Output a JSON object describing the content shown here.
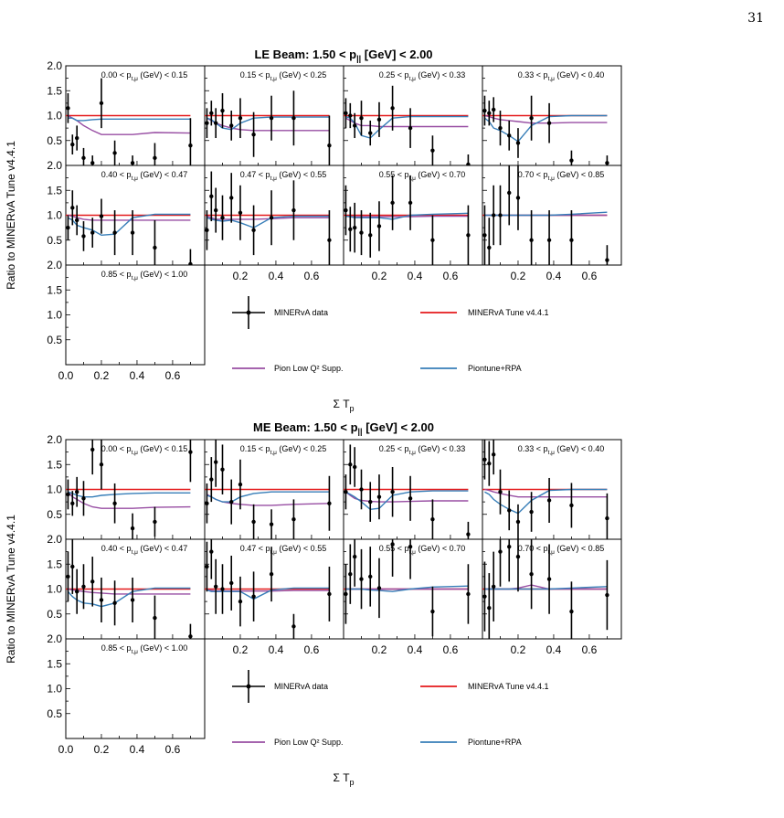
{
  "page_number": "31",
  "colors": {
    "data": "#000000",
    "tune": "#e41a1c",
    "low_q2": "#984ea3",
    "piontune": "#377eb8"
  },
  "legend": {
    "data": "MINERvA data",
    "tune": "MINERvA Tune v4.4.1",
    "low_q2": "Pion Low Q² Supp.",
    "piontune": "Piontune+RPA"
  },
  "chart_data": [
    {
      "type": "scatter",
      "title": "LE Beam: 1.50 < p|| [GeV] < 2.00",
      "ylabel": "Ratio to MINERvA Tune v4.4.1",
      "xlabel": "Σ Tₚ",
      "xlim": [
        0,
        0.78
      ],
      "ylim": [
        0,
        2
      ],
      "x_ticks": [
        "0.0",
        "0.2",
        "0.4",
        "0.6"
      ],
      "x_ticks_inner": [
        "0.2",
        "0.4",
        "0.6"
      ],
      "y_ticks": [
        "0.5",
        "1.0",
        "1.5",
        "2.0"
      ],
      "grid": false,
      "x_bins": [
        0.0125,
        0.0375,
        0.0625,
        0.1,
        0.15,
        0.2,
        0.275,
        0.375,
        0.5,
        0.7
      ],
      "panels": [
        {
          "label": "0.00 < p t,μ (GeV) < 0.15",
          "data": [
            1.15,
            0.42,
            0.55,
            0.15,
            0.05,
            1.25,
            0.25,
            0.05,
            0.15,
            0.4
          ],
          "err": [
            0.3,
            0.2,
            0.25,
            0.2,
            0.15,
            0.5,
            0.25,
            0.15,
            0.3,
            0.55
          ],
          "low_q2": [
            1.0,
            0.95,
            0.9,
            0.8,
            0.7,
            0.62,
            0.62,
            0.62,
            0.66,
            0.65
          ],
          "piontune": [
            0.95,
            0.95,
            0.9,
            0.9,
            0.92,
            0.93,
            0.93,
            0.93,
            0.93,
            0.93
          ]
        },
        {
          "label": "0.15 < p t,μ (GeV) < 0.25",
          "data": [
            0.85,
            1.05,
            0.85,
            1.1,
            0.8,
            0.95,
            0.62,
            0.95,
            0.95,
            0.4
          ],
          "err": [
            0.3,
            0.25,
            0.3,
            0.35,
            0.3,
            0.4,
            0.45,
            0.45,
            0.55,
            0.6
          ],
          "low_q2": [
            0.95,
            0.9,
            0.85,
            0.8,
            0.75,
            0.72,
            0.7,
            0.7,
            0.7,
            0.7
          ],
          "piontune": [
            0.95,
            0.92,
            0.85,
            0.75,
            0.72,
            0.85,
            0.95,
            0.97,
            0.97,
            0.97
          ]
        },
        {
          "label": "0.25 < p t,μ (GeV) < 0.33",
          "data": [
            1.05,
            1.0,
            0.8,
            0.95,
            0.65,
            0.92,
            1.15,
            0.75,
            0.3,
            0.02
          ],
          "err": [
            0.3,
            0.25,
            0.25,
            0.35,
            0.25,
            0.35,
            0.45,
            0.4,
            0.3,
            0.2
          ],
          "low_q2": [
            0.95,
            0.9,
            0.85,
            0.8,
            0.8,
            0.78,
            0.78,
            0.78,
            0.78,
            0.78
          ],
          "piontune": [
            0.98,
            0.95,
            0.85,
            0.6,
            0.55,
            0.72,
            0.95,
            0.98,
            0.98,
            0.98
          ]
        },
        {
          "label": "0.33 < p t,μ (GeV) < 0.40",
          "data": [
            1.1,
            1.05,
            1.12,
            0.75,
            0.6,
            0.45,
            0.95,
            0.85,
            0.1,
            0.05
          ],
          "err": [
            0.3,
            0.25,
            0.25,
            0.35,
            0.3,
            0.3,
            0.45,
            0.4,
            0.2,
            0.15
          ],
          "low_q2": [
            1.0,
            0.98,
            0.95,
            0.92,
            0.9,
            0.88,
            0.85,
            0.85,
            0.86,
            0.86
          ],
          "piontune": [
            0.95,
            0.88,
            0.75,
            0.7,
            0.6,
            0.48,
            0.8,
            0.98,
            1.0,
            1.0
          ]
        },
        {
          "label": "0.40 < p t,μ (GeV) < 0.47",
          "data": [
            0.75,
            1.15,
            0.9,
            0.58,
            0.65,
            0.98,
            0.65,
            0.65,
            0.35,
            0.02
          ],
          "err": [
            0.25,
            0.35,
            0.3,
            0.3,
            0.3,
            0.35,
            0.45,
            0.45,
            0.55,
            0.3
          ],
          "low_q2": [
            1.0,
            0.98,
            0.95,
            0.92,
            0.9,
            0.9,
            0.9,
            0.9,
            0.9,
            0.9
          ],
          "piontune": [
            0.95,
            0.9,
            0.8,
            0.75,
            0.7,
            0.6,
            0.62,
            0.95,
            1.02,
            1.02
          ]
        },
        {
          "label": "0.47 < p t,μ (GeV) < 0.55",
          "data": [
            0.7,
            1.38,
            1.1,
            0.95,
            1.35,
            1.05,
            0.7,
            0.95,
            1.1,
            0.5
          ],
          "err": [
            0.4,
            0.5,
            0.45,
            0.45,
            0.5,
            0.55,
            0.5,
            0.55,
            0.6,
            0.6
          ],
          "low_q2": [
            0.98,
            0.95,
            0.92,
            0.92,
            0.92,
            0.92,
            0.92,
            0.93,
            0.95,
            0.95
          ],
          "piontune": [
            0.95,
            0.92,
            0.9,
            0.88,
            0.9,
            0.85,
            0.75,
            0.95,
            0.98,
            0.98
          ]
        },
        {
          "label": "0.55 < p t,μ (GeV) < 0.70",
          "data": [
            1.1,
            0.72,
            0.75,
            0.65,
            0.6,
            0.78,
            1.25,
            1.25,
            0.5,
            0.6
          ],
          "err": [
            0.5,
            0.45,
            0.5,
            0.45,
            0.45,
            0.5,
            0.55,
            0.55,
            0.5,
            0.6
          ],
          "low_q2": [
            0.98,
            0.97,
            0.97,
            0.97,
            0.97,
            0.97,
            0.97,
            0.97,
            0.98,
            0.98
          ],
          "piontune": [
            0.98,
            0.97,
            0.95,
            0.95,
            0.95,
            0.95,
            0.92,
            1.0,
            1.02,
            1.04
          ]
        },
        {
          "label": "0.70 < p t,μ (GeV) < 0.85",
          "data": [
            0.6,
            0.35,
            1.0,
            1.0,
            1.45,
            1.35,
            0.5,
            0.5,
            0.5,
            0.1
          ],
          "err": [
            0.6,
            0.6,
            0.6,
            0.6,
            0.65,
            0.65,
            0.6,
            0.6,
            0.6,
            0.3
          ],
          "low_q2": [
            1.0,
            1.0,
            1.0,
            1.0,
            1.0,
            1.0,
            1.0,
            1.0,
            1.0,
            1.0
          ],
          "piontune": [
            1.0,
            1.0,
            1.0,
            1.0,
            1.0,
            1.0,
            1.0,
            1.0,
            1.02,
            1.06
          ]
        },
        {
          "label": "0.85 < p t,μ (GeV) < 1.00",
          "data": [],
          "err": [],
          "low_q2": [],
          "piontune": []
        }
      ]
    },
    {
      "type": "scatter",
      "title": "ME Beam: 1.50 < p|| [GeV] < 2.00",
      "ylabel": "Ratio to MINERvA Tune v4.4.1",
      "xlabel": "Σ Tₚ",
      "xlim": [
        0,
        0.78
      ],
      "ylim": [
        0,
        2
      ],
      "x_ticks": [
        "0.0",
        "0.2",
        "0.4",
        "0.6"
      ],
      "x_ticks_inner": [
        "0.2",
        "0.4",
        "0.6"
      ],
      "y_ticks": [
        "0.5",
        "1.0",
        "1.5",
        "2.0"
      ],
      "grid": false,
      "x_bins": [
        0.0125,
        0.0375,
        0.0625,
        0.1,
        0.15,
        0.2,
        0.275,
        0.375,
        0.5,
        0.7
      ],
      "panels": [
        {
          "label": "0.00 < p t,μ (GeV) < 0.15",
          "data": [
            0.9,
            0.72,
            0.95,
            0.82,
            1.8,
            1.5,
            0.72,
            0.22,
            0.35,
            1.75
          ],
          "err": [
            0.3,
            0.25,
            0.3,
            0.35,
            0.5,
            0.5,
            0.4,
            0.3,
            0.3,
            0.6
          ],
          "low_q2": [
            0.95,
            0.85,
            0.8,
            0.72,
            0.65,
            0.62,
            0.62,
            0.62,
            0.64,
            0.65
          ],
          "piontune": [
            0.95,
            0.92,
            0.88,
            0.85,
            0.85,
            0.88,
            0.9,
            0.92,
            0.93,
            0.93
          ]
        },
        {
          "label": "0.15 < p t,μ (GeV) < 0.25",
          "data": [
            0.72,
            1.2,
            1.55,
            1.4,
            0.75,
            1.1,
            0.35,
            0.3,
            0.4,
            0.72
          ],
          "err": [
            0.4,
            0.45,
            0.5,
            0.5,
            0.45,
            0.5,
            0.35,
            0.3,
            0.4,
            0.55
          ],
          "low_q2": [
            0.9,
            0.85,
            0.8,
            0.75,
            0.72,
            0.7,
            0.68,
            0.68,
            0.7,
            0.72
          ],
          "piontune": [
            0.88,
            0.85,
            0.8,
            0.75,
            0.75,
            0.85,
            0.92,
            0.95,
            0.95,
            0.95
          ]
        },
        {
          "label": "0.25 < p t,μ (GeV) < 0.33",
          "data": [
            0.95,
            1.5,
            1.45,
            1.0,
            0.75,
            0.85,
            0.95,
            0.82,
            0.4,
            0.1
          ],
          "err": [
            0.35,
            0.4,
            0.4,
            0.4,
            0.4,
            0.45,
            0.5,
            0.45,
            0.4,
            0.25
          ],
          "low_q2": [
            0.95,
            0.88,
            0.82,
            0.78,
            0.76,
            0.75,
            0.75,
            0.76,
            0.77,
            0.77
          ],
          "piontune": [
            0.95,
            0.9,
            0.85,
            0.75,
            0.6,
            0.62,
            0.88,
            0.95,
            0.97,
            0.97
          ]
        },
        {
          "label": "0.33 < p t,μ (GeV) < 0.40",
          "data": [
            1.6,
            1.52,
            1.7,
            0.95,
            0.58,
            0.35,
            0.55,
            0.78,
            0.68,
            0.42
          ],
          "err": [
            0.4,
            0.45,
            0.4,
            0.45,
            0.4,
            0.35,
            0.4,
            0.45,
            0.45,
            0.5
          ],
          "low_q2": [
            1.0,
            0.98,
            0.95,
            0.92,
            0.88,
            0.85,
            0.85,
            0.85,
            0.85,
            0.85
          ],
          "piontune": [
            0.95,
            0.9,
            0.8,
            0.7,
            0.6,
            0.52,
            0.78,
            0.98,
            1.0,
            1.0
          ]
        },
        {
          "label": "0.40 < p t,μ (GeV) < 0.47",
          "data": [
            1.25,
            1.45,
            0.95,
            1.05,
            1.15,
            0.78,
            0.72,
            0.78,
            0.42,
            0.05
          ],
          "err": [
            0.5,
            0.55,
            0.45,
            0.45,
            0.5,
            0.45,
            0.45,
            0.45,
            0.45,
            0.25
          ],
          "low_q2": [
            1.0,
            0.98,
            0.97,
            0.95,
            0.93,
            0.92,
            0.9,
            0.9,
            0.9,
            0.9
          ],
          "piontune": [
            0.95,
            0.85,
            0.78,
            0.72,
            0.7,
            0.65,
            0.72,
            0.95,
            1.02,
            1.02
          ]
        },
        {
          "label": "0.47 < p t,μ (GeV) < 0.55",
          "data": [
            1.45,
            1.75,
            1.05,
            1.0,
            1.12,
            0.75,
            0.85,
            1.3,
            0.25,
            0.9
          ],
          "err": [
            0.5,
            0.55,
            0.55,
            0.5,
            0.55,
            0.5,
            0.5,
            0.55,
            0.25,
            0.55
          ],
          "low_q2": [
            0.98,
            0.97,
            0.96,
            0.96,
            0.96,
            0.96,
            0.96,
            0.96,
            0.97,
            0.97
          ],
          "piontune": [
            0.98,
            0.95,
            0.95,
            0.95,
            0.95,
            0.95,
            0.8,
            0.98,
            1.02,
            1.02
          ]
        },
        {
          "label": "0.55 < p t,μ (GeV) < 0.70",
          "data": [
            0.9,
            1.3,
            1.65,
            1.2,
            1.25,
            1.02,
            1.9,
            1.85,
            0.55,
            0.9
          ],
          "err": [
            0.6,
            0.6,
            0.6,
            0.6,
            0.6,
            0.6,
            0.65,
            0.65,
            0.5,
            0.6
          ],
          "low_q2": [
            1.0,
            1.0,
            1.0,
            1.0,
            1.0,
            1.0,
            1.0,
            1.0,
            1.0,
            1.0
          ],
          "piontune": [
            1.0,
            1.0,
            1.0,
            1.0,
            0.98,
            0.97,
            0.95,
            1.0,
            1.04,
            1.06
          ]
        },
        {
          "label": "0.70 < p t,μ (GeV) < 0.85",
          "data": [
            0.85,
            0.62,
            1.05,
            1.75,
            1.85,
            1.65,
            1.3,
            1.2,
            0.55,
            0.88
          ],
          "err": [
            0.7,
            0.7,
            0.7,
            0.7,
            0.7,
            0.7,
            0.7,
            0.7,
            0.6,
            0.7
          ],
          "low_q2": [
            1.0,
            1.0,
            1.0,
            1.0,
            1.0,
            1.02,
            1.08,
            1.0,
            1.0,
            1.0
          ],
          "piontune": [
            1.0,
            1.0,
            1.0,
            1.0,
            1.0,
            1.0,
            1.0,
            1.0,
            1.02,
            1.05
          ]
        },
        {
          "label": "0.85 < p t,μ (GeV) < 1.00",
          "data": [],
          "err": [],
          "low_q2": [],
          "piontune": []
        }
      ]
    }
  ]
}
